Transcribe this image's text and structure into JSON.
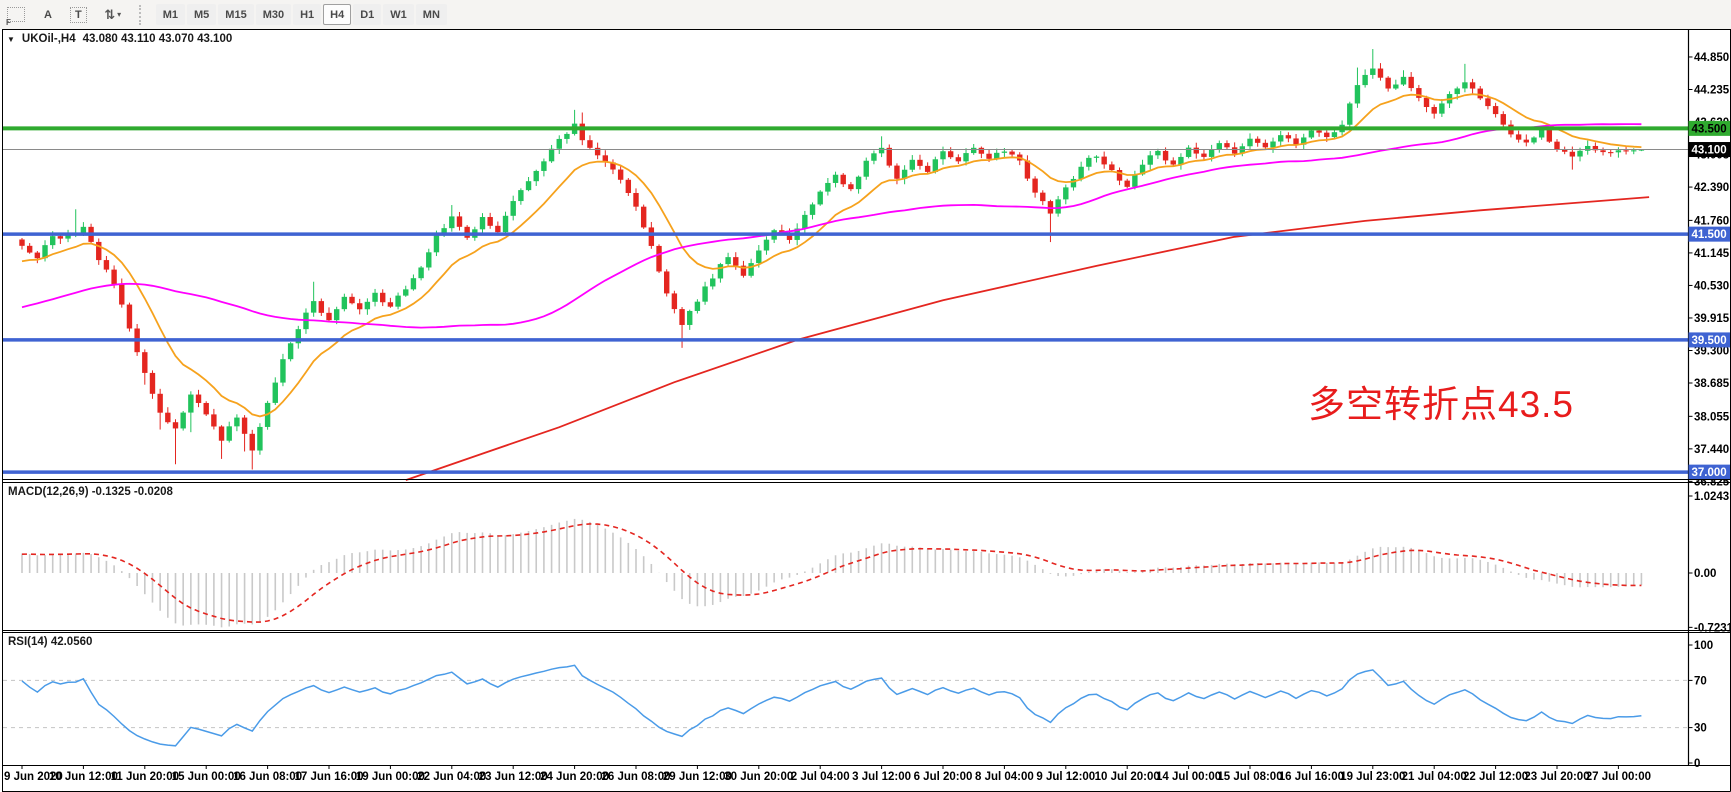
{
  "toolbar": {
    "icons": [
      {
        "name": "chart-grid-icon",
        "glyph": "F"
      },
      {
        "name": "label-tool",
        "label": "A"
      },
      {
        "name": "textbox-tool",
        "label": "T"
      },
      {
        "name": "cursor-tool",
        "glyph": "⇅",
        "caret": "▾"
      }
    ],
    "timeframes": [
      "M1",
      "M5",
      "M15",
      "M30",
      "H1",
      "H4",
      "D1",
      "W1",
      "MN"
    ],
    "active_timeframe": "H4"
  },
  "chart": {
    "dropdown_glyph": "▼",
    "symbol_title": "UKOil-,H4",
    "quote_text": "43.080 43.110 43.070 43.100",
    "annotation": {
      "text": "多空转折点43.5",
      "color": "#e81c1c"
    },
    "colors": {
      "up": "#21c35c",
      "down": "#e42620",
      "ma_fast": "#f6a21d",
      "ma_mid": "#ff00ff",
      "ma_slow": "#e42620",
      "level_green": "#2faa2f",
      "level_blue": "#3f63d2",
      "current_line": "#8a8a8a",
      "current_badge_bg": "#000000",
      "macd_hist": "#c9c9c9",
      "macd_signal": "#e42620",
      "rsi_line": "#4a9be8",
      "rsi_level_dash": "#c4c4c4",
      "axis_text": "#000000"
    },
    "price_axis": {
      "ticks": [
        "44.850",
        "44.235",
        "43.620",
        "43.005",
        "42.390",
        "41.760",
        "41.145",
        "40.530",
        "39.915",
        "39.300",
        "38.685",
        "38.055",
        "37.440",
        "36.825"
      ],
      "top_price": 45.36,
      "bottom_price": 36.87
    },
    "levels": [
      {
        "price": 43.5,
        "label": "43.500",
        "type": "green"
      },
      {
        "price": 41.5,
        "label": "41.500",
        "type": "blue"
      },
      {
        "price": 39.5,
        "label": "39.500",
        "type": "blue"
      },
      {
        "price": 37.0,
        "label": "37.000",
        "type": "blue"
      }
    ],
    "current_price": {
      "price": 43.1,
      "label": "43.100"
    }
  },
  "macd_panel": {
    "label": "MACD(12,26,9) -0.1325 -0.0208",
    "axis_ticks": [
      {
        "v": 1.0243,
        "label": "1.0243"
      },
      {
        "v": 0,
        "label": "0.00"
      },
      {
        "v": -0.7231,
        "label": "-0.7231"
      }
    ],
    "max": 1.0243,
    "min": -0.7231
  },
  "rsi_panel": {
    "label": "RSI(14) 42.0560",
    "axis_ticks": [
      {
        "v": 100,
        "label": "100"
      },
      {
        "v": 70,
        "label": "70"
      },
      {
        "v": 30,
        "label": "30"
      },
      {
        "v": 0,
        "label": "0"
      }
    ],
    "levels": [
      70,
      30
    ]
  },
  "chart_data": {
    "type": "candlestick",
    "symbol": "UKOil-",
    "timeframe": "H4",
    "title": "UKOil-,H4 43.080 43.110 43.070 43.100",
    "x_labels": [
      "9 Jun 2020",
      "10 Jun 12:00",
      "11 Jun 20:00",
      "15 Jun 00:00",
      "16 Jun 08:00",
      "17 Jun 16:00",
      "19 Jun 00:00",
      "22 Jun 04:00",
      "23 Jun 12:00",
      "24 Jun 20:00",
      "26 Jun 08:00",
      "29 Jun 12:00",
      "30 Jun 20:00",
      "2 Jul 04:00",
      "3 Jul 12:00",
      "6 Jul 20:00",
      "8 Jul 04:00",
      "9 Jul 12:00",
      "10 Jul 20:00",
      "14 Jul 00:00",
      "15 Jul 08:00",
      "16 Jul 16:00",
      "19 Jul 23:00",
      "21 Jul 04:00",
      "22 Jul 12:00",
      "23 Jul 20:00",
      "27 Jul 00:00"
    ],
    "bars": 212,
    "bars_per_label": 8,
    "price_range": [
      36.87,
      45.36
    ],
    "last_quote": {
      "open": 43.08,
      "high": 43.11,
      "low": 43.07,
      "close": 43.1
    },
    "close_waypoints": [
      [
        0,
        41.3
      ],
      [
        2,
        41.05
      ],
      [
        4,
        41.45
      ],
      [
        6,
        41.45
      ],
      [
        8,
        41.6
      ],
      [
        10,
        41.05
      ],
      [
        12,
        40.55
      ],
      [
        14,
        39.75
      ],
      [
        16,
        38.85
      ],
      [
        18,
        38.15
      ],
      [
        20,
        37.8
      ],
      [
        22,
        38.45
      ],
      [
        24,
        38.1
      ],
      [
        26,
        37.6
      ],
      [
        28,
        38.05
      ],
      [
        30,
        37.45
      ],
      [
        32,
        38.3
      ],
      [
        34,
        39.1
      ],
      [
        36,
        39.7
      ],
      [
        38,
        40.25
      ],
      [
        40,
        39.85
      ],
      [
        42,
        40.3
      ],
      [
        44,
        40.05
      ],
      [
        46,
        40.35
      ],
      [
        48,
        40.15
      ],
      [
        50,
        40.45
      ],
      [
        52,
        40.9
      ],
      [
        54,
        41.45
      ],
      [
        56,
        41.8
      ],
      [
        58,
        41.45
      ],
      [
        60,
        41.8
      ],
      [
        62,
        41.55
      ],
      [
        64,
        42.1
      ],
      [
        66,
        42.5
      ],
      [
        68,
        42.9
      ],
      [
        70,
        43.3
      ],
      [
        72,
        43.55
      ],
      [
        73,
        43.3
      ],
      [
        74,
        43.1
      ],
      [
        76,
        42.85
      ],
      [
        78,
        42.55
      ],
      [
        80,
        42.05
      ],
      [
        82,
        41.25
      ],
      [
        84,
        40.35
      ],
      [
        86,
        39.8
      ],
      [
        88,
        40.25
      ],
      [
        90,
        40.7
      ],
      [
        92,
        41.1
      ],
      [
        94,
        40.75
      ],
      [
        96,
        41.2
      ],
      [
        98,
        41.6
      ],
      [
        100,
        41.4
      ],
      [
        102,
        41.85
      ],
      [
        104,
        42.3
      ],
      [
        106,
        42.6
      ],
      [
        108,
        42.35
      ],
      [
        110,
        42.9
      ],
      [
        112,
        43.1
      ],
      [
        114,
        42.55
      ],
      [
        116,
        42.9
      ],
      [
        118,
        42.7
      ],
      [
        120,
        43.05
      ],
      [
        122,
        42.85
      ],
      [
        124,
        43.15
      ],
      [
        126,
        42.95
      ],
      [
        128,
        43.1
      ],
      [
        130,
        42.85
      ],
      [
        132,
        42.3
      ],
      [
        134,
        41.9
      ],
      [
        136,
        42.35
      ],
      [
        138,
        42.8
      ],
      [
        140,
        43.0
      ],
      [
        142,
        42.7
      ],
      [
        144,
        42.4
      ],
      [
        146,
        42.85
      ],
      [
        148,
        43.05
      ],
      [
        150,
        42.8
      ],
      [
        152,
        43.1
      ],
      [
        154,
        42.95
      ],
      [
        156,
        43.2
      ],
      [
        158,
        43.05
      ],
      [
        160,
        43.3
      ],
      [
        162,
        43.15
      ],
      [
        164,
        43.4
      ],
      [
        166,
        43.2
      ],
      [
        168,
        43.5
      ],
      [
        170,
        43.3
      ],
      [
        172,
        43.6
      ],
      [
        174,
        44.35
      ],
      [
        176,
        44.6
      ],
      [
        178,
        44.25
      ],
      [
        180,
        44.45
      ],
      [
        182,
        44.05
      ],
      [
        184,
        43.75
      ],
      [
        186,
        44.15
      ],
      [
        188,
        44.4
      ],
      [
        190,
        44.1
      ],
      [
        192,
        43.75
      ],
      [
        194,
        43.4
      ],
      [
        196,
        43.2
      ],
      [
        198,
        43.45
      ],
      [
        200,
        43.1
      ],
      [
        202,
        42.95
      ],
      [
        204,
        43.15
      ],
      [
        206,
        43.05
      ],
      [
        208,
        43.1
      ]
    ],
    "high_overrides": [
      [
        7,
        41.97
      ],
      [
        38,
        40.6
      ],
      [
        56,
        42.05
      ],
      [
        72,
        43.85
      ],
      [
        73,
        43.8
      ],
      [
        112,
        43.35
      ],
      [
        174,
        44.65
      ],
      [
        176,
        45.0
      ],
      [
        180,
        44.6
      ],
      [
        188,
        44.72
      ]
    ],
    "low_overrides": [
      [
        20,
        37.15
      ],
      [
        26,
        37.25
      ],
      [
        30,
        37.05
      ],
      [
        86,
        39.35
      ],
      [
        134,
        41.35
      ],
      [
        202,
        42.72
      ]
    ],
    "slow_ma_points": [
      [
        50,
        36.85
      ],
      [
        60,
        37.35
      ],
      [
        70,
        37.85
      ],
      [
        85,
        38.7
      ],
      [
        101,
        39.5
      ],
      [
        120,
        40.25
      ],
      [
        140,
        40.9
      ],
      [
        158,
        41.45
      ],
      [
        175,
        41.75
      ],
      [
        190,
        41.95
      ],
      [
        212,
        42.2
      ]
    ],
    "indicators": {
      "macd": {
        "fast": 12,
        "slow": 26,
        "signal": 9,
        "main_value": -0.1325,
        "signal_value": -0.0208
      },
      "rsi": {
        "period": 14,
        "value": 42.056
      }
    },
    "key_levels": [
      43.5,
      41.5,
      39.5,
      37.0
    ]
  }
}
